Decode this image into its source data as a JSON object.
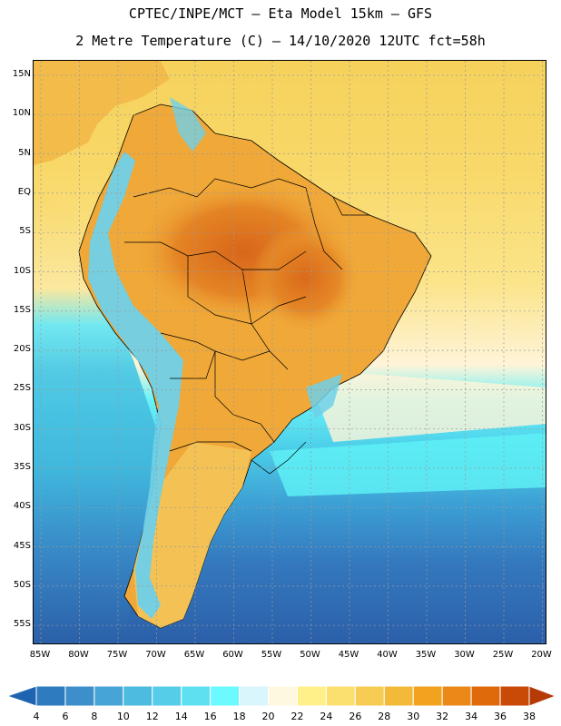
{
  "title": {
    "line1": "CPTEC/INPE/MCT –  Eta Model 15km – GFS",
    "line2": "2 Metre Temperature (C) – 14/10/2020 12UTC fct=58h"
  },
  "map": {
    "lat_labels": [
      "15N",
      "10N",
      "5N",
      "EQ",
      "5S",
      "10S",
      "15S",
      "20S",
      "25S",
      "30S",
      "35S",
      "40S",
      "45S",
      "50S",
      "55S"
    ],
    "lon_labels": [
      "85W",
      "80W",
      "75W",
      "70W",
      "65W",
      "60W",
      "55W",
      "50W",
      "45W",
      "40W",
      "35W",
      "30W",
      "25W",
      "20W"
    ],
    "colors": {
      "ocean_cold": "#2b5fa8",
      "ocean_cool": "#3c8cc8",
      "ocean_mid": "#44c6e6",
      "ocean_cyan": "#5cf0f5",
      "ocean_warm": "#fff2d0",
      "land_hot": "#e0781a",
      "land_warm": "#f0a838",
      "land_mild": "#f4c458",
      "north_ocean": "#f8d868",
      "andes": "#6fd0e8"
    }
  },
  "colorbar": {
    "labels": [
      "4",
      "6",
      "8",
      "10",
      "12",
      "14",
      "16",
      "18",
      "20",
      "22",
      "24",
      "26",
      "28",
      "30",
      "32",
      "34",
      "36",
      "38"
    ],
    "colors": [
      "#1f64b0",
      "#2e7cbf",
      "#3c8fca",
      "#46a5d6",
      "#4dbae0",
      "#56cde8",
      "#5fe0f0",
      "#6afaff",
      "#d8f6fb",
      "#fff8e0",
      "#fff08a",
      "#fbe070",
      "#f6cd52",
      "#f3ba3a",
      "#f2a21e",
      "#ea8818",
      "#df6a0c",
      "#c94a06",
      "#b53a06"
    ]
  }
}
